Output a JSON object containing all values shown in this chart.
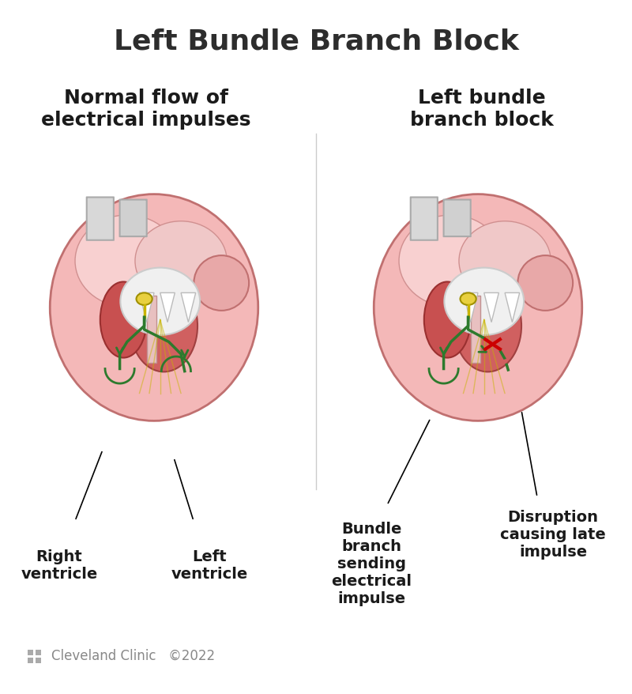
{
  "title": "Left Bundle Branch Block",
  "title_fontsize": 26,
  "title_color": "#2d2d2d",
  "title_fontweight": "bold",
  "left_subtitle": "Normal flow of\nelectrical impulses",
  "right_subtitle": "Left bundle\nbranch block",
  "subtitle_fontsize": 18,
  "subtitle_fontweight": "bold",
  "subtitle_color": "#1a1a1a",
  "left_labels": {
    "right_ventricle": "Right\nventricle",
    "left_ventricle": "Left\nventricle"
  },
  "right_labels": {
    "bundle_branch": "Bundle\nbranch\nsending\nelectrical\nimpulse",
    "disruption": "Disruption\ncausing late\nimpulse"
  },
  "label_fontsize": 14,
  "label_color": "#1a1a1a",
  "label_fontweight": "bold",
  "footer_text": "Cleveland Clinic   ©2022",
  "footer_fontsize": 12,
  "footer_color": "#888888",
  "bg_color": "#ffffff",
  "heart_bg": "#f2a0a0",
  "heart_outline": "#c06060",
  "electrical_color": "#c8b400",
  "bundle_color": "#2d7a2d",
  "disruption_color": "#cc0000"
}
